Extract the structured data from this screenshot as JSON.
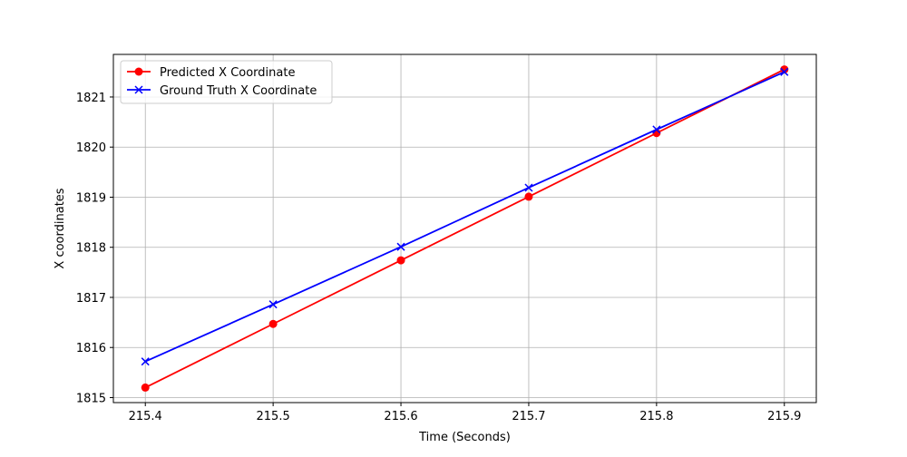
{
  "chart_data": {
    "type": "line",
    "title": "",
    "xlabel": "Time (Seconds)",
    "ylabel": "X coordinates",
    "x": [
      215.4,
      215.5,
      215.6,
      215.7,
      215.8,
      215.9
    ],
    "x_ticks": [
      "215.4",
      "215.5",
      "215.6",
      "215.7",
      "215.8",
      "215.9"
    ],
    "y_ticks": [
      "1815",
      "1816",
      "1817",
      "1818",
      "1819",
      "1820",
      "1821"
    ],
    "xlim": [
      215.375,
      215.925
    ],
    "ylim": [
      1814.9,
      1821.85
    ],
    "grid": true,
    "legend_position": "top-left",
    "series": [
      {
        "name": "Predicted X Coordinate",
        "color": "#ff0000",
        "marker": "circle",
        "values": [
          1815.2,
          1816.47,
          1817.74,
          1819.01,
          1820.28,
          1821.55
        ]
      },
      {
        "name": "Ground Truth X Coordinate",
        "color": "#0000ff",
        "marker": "x",
        "values": [
          1815.72,
          1816.86,
          1818.01,
          1819.19,
          1820.35,
          1821.5
        ]
      }
    ]
  }
}
